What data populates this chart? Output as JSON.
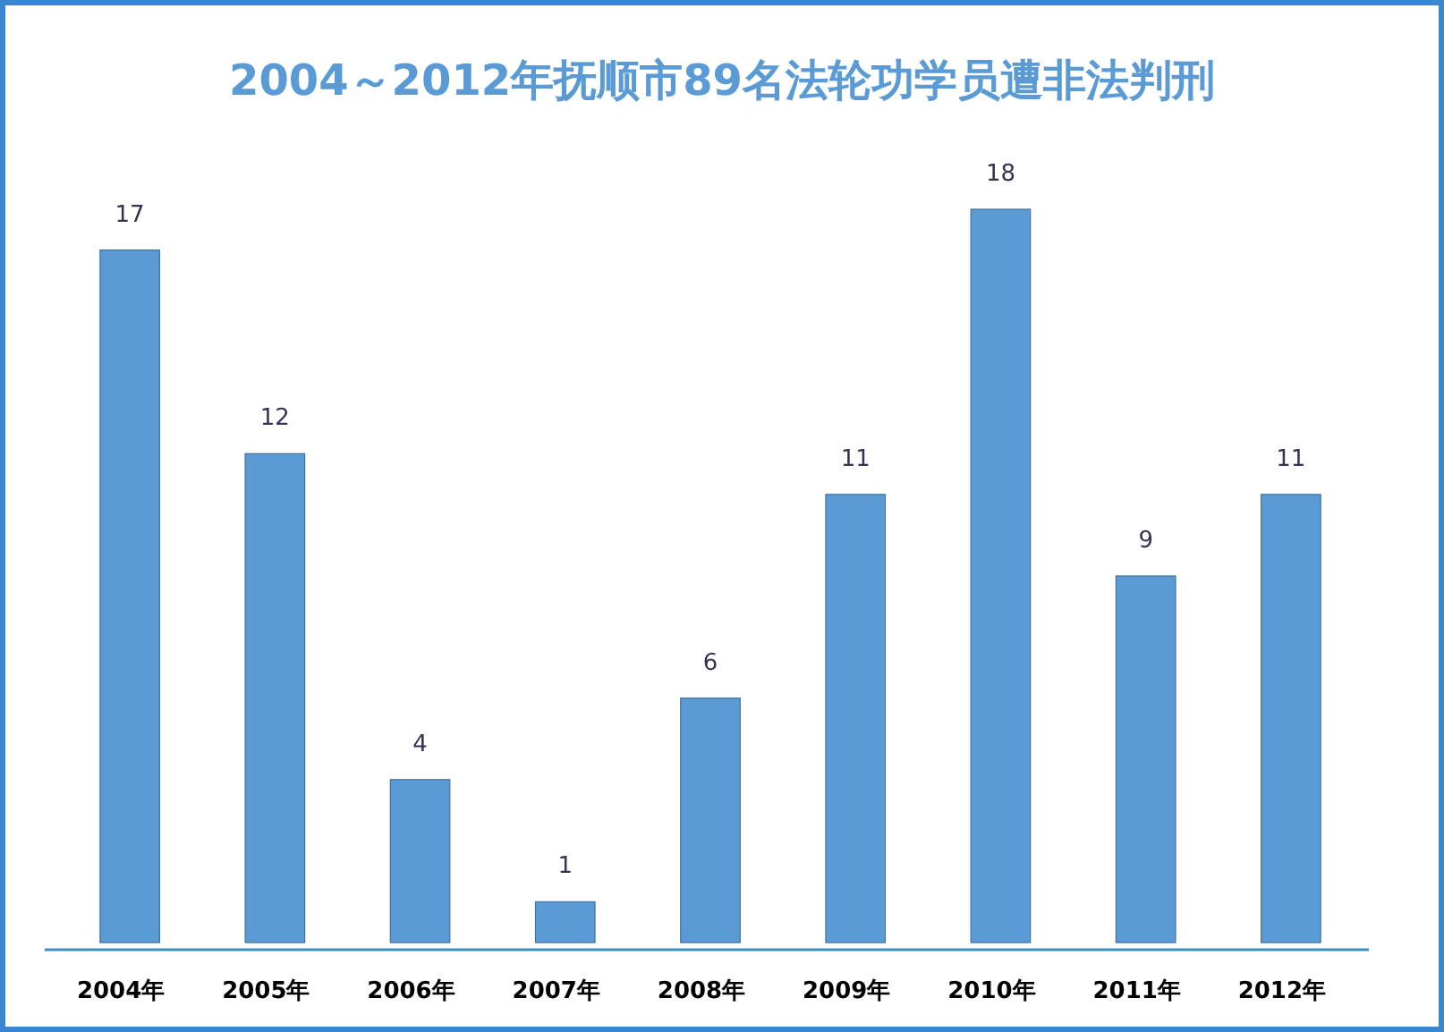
{
  "chart_data": {
    "type": "bar",
    "title": "2004～2012年抚顺市89名法轮功学员遭非法判刑",
    "categories": [
      "2004年",
      "2005年",
      "2006年",
      "2007年",
      "2008年",
      "2009年",
      "2010年",
      "2011年",
      "2012年"
    ],
    "values": [
      17,
      12,
      4,
      1,
      6,
      11,
      18,
      9,
      11
    ],
    "color": "#5b9bd5",
    "data_labels": true
  }
}
